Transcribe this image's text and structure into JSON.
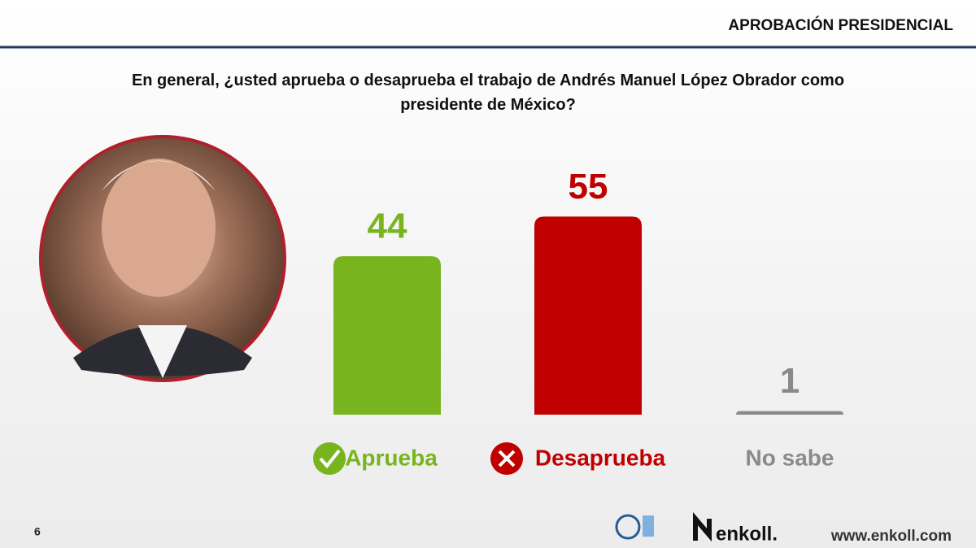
{
  "header": {
    "title": "APROBACIÓN PRESIDENCIAL"
  },
  "chart_data": {
    "type": "bar",
    "title": "En general, ¿usted aprueba o desaprueba el trabajo de Andrés Manuel López Obrador como presidente de México?",
    "categories": [
      "Aprueba",
      "Desaprueba",
      "No sabe"
    ],
    "values": [
      44,
      55,
      1
    ],
    "colors": [
      "#78b41e",
      "#c00000",
      "#8a8a8a"
    ],
    "ylim": [
      0,
      100
    ]
  },
  "footer": {
    "page": "6",
    "brand": "enkoll.",
    "url": "www.enkoll.com"
  }
}
